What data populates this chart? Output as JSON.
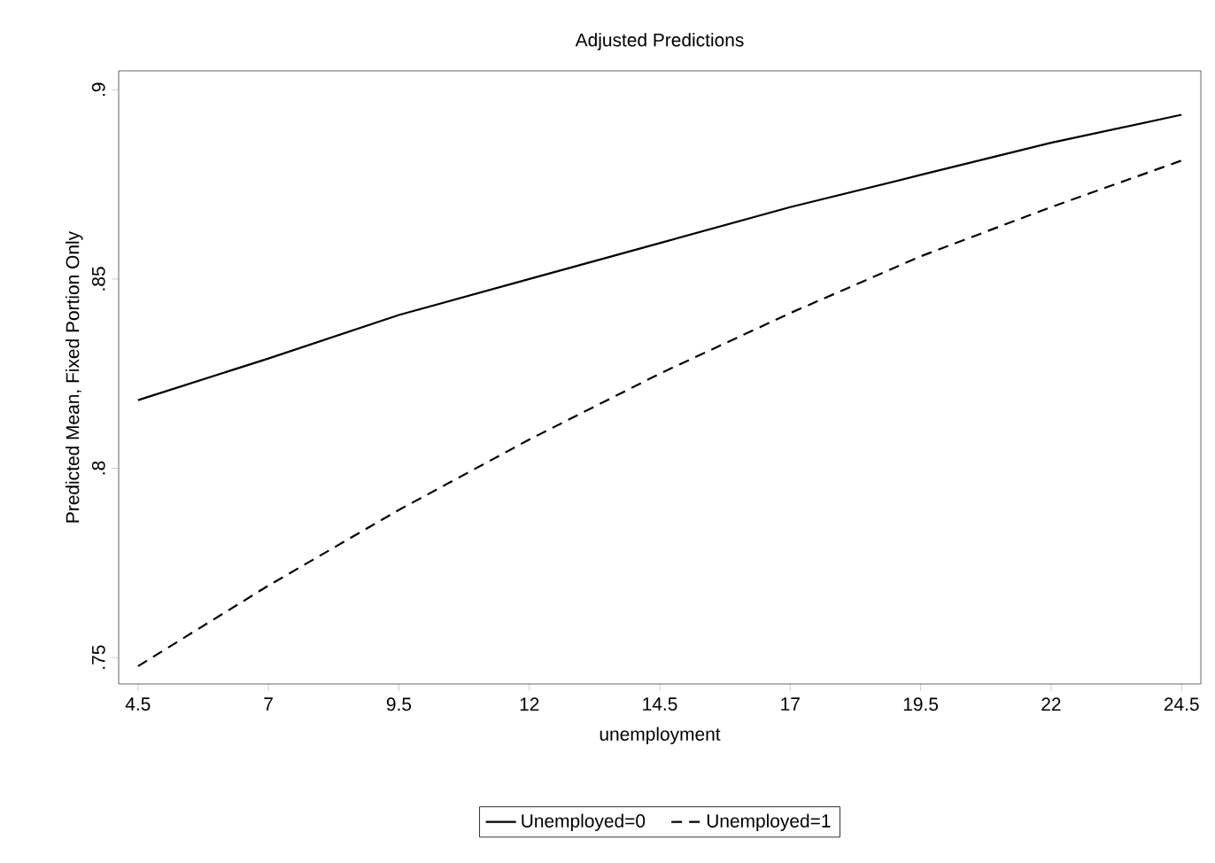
{
  "chart_data": {
    "type": "line",
    "title": "Adjusted Predictions",
    "xlabel": "unemployment",
    "ylabel": "Predicted Mean, Fixed Portion Only",
    "x": [
      4.5,
      7,
      9.5,
      12,
      14.5,
      17,
      19.5,
      22,
      24.5
    ],
    "series": [
      {
        "name": "Unemployed=0",
        "color": "#000000",
        "line_style": "solid",
        "values": [
          0.818,
          0.829,
          0.8405,
          0.85,
          0.8595,
          0.869,
          0.8775,
          0.886,
          0.8934
        ]
      },
      {
        "name": "Unemployed=1",
        "color": "#000000",
        "line_style": "dashed",
        "values": [
          0.7477,
          0.769,
          0.789,
          0.8076,
          0.825,
          0.841,
          0.856,
          0.869,
          0.8813
        ]
      }
    ],
    "xlim": [
      4.13,
      24.87
    ],
    "ylim": [
      0.743,
      0.905
    ],
    "xticks": [
      4.5,
      7,
      9.5,
      12,
      14.5,
      17,
      19.5,
      22,
      24.5
    ],
    "yticks": [
      {
        "value": 0.75,
        "label": ".75"
      },
      {
        "value": 0.8,
        "label": ".8"
      },
      {
        "value": 0.85,
        "label": ".85"
      },
      {
        "value": 0.9,
        "label": ".9"
      }
    ],
    "grid": false,
    "legend": "bottom",
    "marker": "none"
  }
}
